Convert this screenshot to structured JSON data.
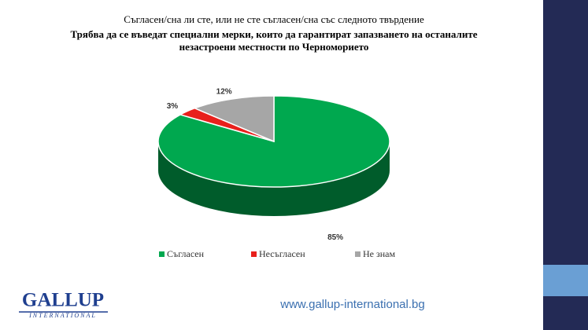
{
  "chart_data": {
    "type": "pie",
    "title": "Съгласен/сна ли сте, или не сте съгласен/сна със следното твърдение",
    "subtitle": "Трябва да се въведат специални мерки, които да гарантират запазването на останалите незастроени местности по Черноморието",
    "categories": [
      "Съгласен",
      "Несъгласен",
      "Не знам"
    ],
    "values": [
      85,
      3,
      12
    ],
    "value_labels": [
      "85%",
      "3%",
      "12%"
    ],
    "colors": [
      "#00a84f",
      "#e8201c",
      "#a6a6a6"
    ],
    "legend": "bottom"
  },
  "footer": {
    "url": "www.gallup-international.bg",
    "logo": "GALLUP",
    "logo_sub": "INTERNATIONAL"
  }
}
